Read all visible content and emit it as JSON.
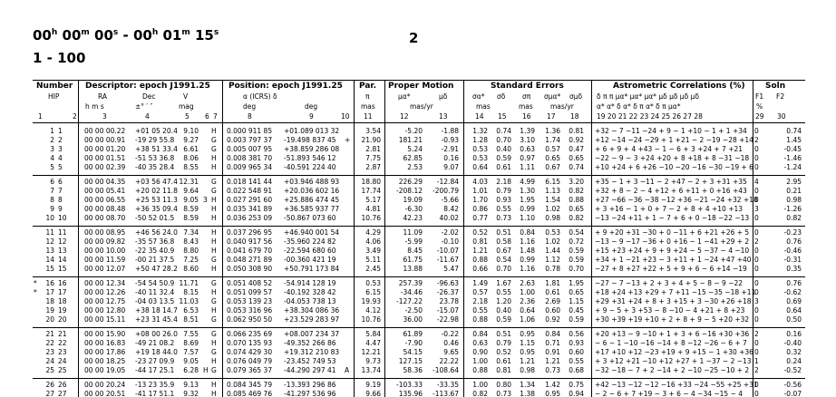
{
  "header": {
    "range": {
      "h1": "00",
      "m1": "00",
      "s1": "00",
      "h2": "00",
      "m2": "01",
      "s2": "15",
      "u_h": "h",
      "u_m": "m",
      "u_s": "s"
    },
    "page_number": "2",
    "subtitle": "1 - 100"
  },
  "columns": {
    "number": {
      "title": "Number",
      "sub": "HIP",
      "n1": "1",
      "n2": "2"
    },
    "descriptor": {
      "title": "Descriptor:  epoch J1991.25",
      "ra": "RA",
      "dec": "Dec",
      "v": "V",
      "ra_units": "h  m  s",
      "dec_units": "±°  ′  ″",
      "v_units": "mag",
      "n3": "3",
      "n4": "4",
      "n5": "5",
      "n6": "6",
      "n7": "7"
    },
    "position": {
      "title": "Position:  epoch J1991.25",
      "icrs": "α       (ICRS)       δ",
      "u1": "deg",
      "u2": "deg",
      "n8": "8",
      "n9": "9",
      "n10": "10"
    },
    "par": {
      "title": "Par.",
      "sym": "π",
      "units": "mas",
      "n": "11"
    },
    "proper_motion": {
      "title": "Proper Motion",
      "mua": "μα*",
      "mud": "μδ",
      "units": "mas/yr",
      "n12": "12",
      "n13": "13"
    },
    "std_errors": {
      "title": "Standard Errors",
      "syms": [
        "σα*",
        "σδ",
        "σπ",
        "σμα*",
        "σμδ"
      ],
      "u1": "mas",
      "u2": "mas",
      "u3": "mas/yr",
      "nums": [
        "14",
        "15",
        "16",
        "17",
        "18"
      ]
    },
    "astrometric": {
      "title": "Astrometric Correlations (%)",
      "row1": "δ   π   π  μα* μα* μα* μδ  μδ  μδ  μδ",
      "row2": "α*  α*  δ   α*  δ   π   α*  δ   π  μα*",
      "nums": "19  20  21  22  23  24  25  26  27  28"
    },
    "soln": {
      "title": "Soln",
      "f1": "F1",
      "f2": "F2",
      "pct": "%",
      "n29": "29",
      "n30": "30"
    }
  },
  "groups": [
    [
      {
        "n": "1",
        "flag": "",
        "hip": "1",
        "ra": "00 00 00.22",
        "dec": "+01 05 20.4",
        "v": "9.10",
        "f6": "",
        "f7": "H",
        "rad": "0.000 911 85",
        "ded": "+01.089 013 32",
        "f10": "",
        "par": "3.54",
        "pma": "-5.20",
        "pmd": "-1.88",
        "e1": "1.32",
        "e2": "0.74",
        "e3": "1.39",
        "e4": "1.36",
        "e5": "0.81",
        "corr": "+32 − 7 −11 −24 + 9 − 1 +10 − 1 + 1 +34",
        "f1": "0",
        "f2": "0.74"
      },
      {
        "n": "2",
        "flag": "",
        "hip": "2",
        "ra": "00 00 00.91",
        "dec": "-19 29 55.8",
        "v": "9.27",
        "f6": "",
        "f7": "G",
        "rad": "0.003 797 37",
        "ded": "-19.498 837 45",
        "f10": "+",
        "par": "21.90",
        "pma": "181.21",
        "pmd": "-0.93",
        "e1": "1.28",
        "e2": "0.70",
        "e3": "3.10",
        "e4": "1.74",
        "e5": "0.92",
        "corr": "+12 −14 −24 −29 + 1 +21 − 2 −19 −28 +14",
        "f1": "2",
        "f2": "1.45"
      },
      {
        "n": "3",
        "flag": "",
        "hip": "3",
        "ra": "00 00 01.20",
        "dec": "+38 51 33.4",
        "v": "6.61",
        "f6": "",
        "f7": "G",
        "rad": "0.005 007 95",
        "ded": "+38.859 286 08",
        "f10": "",
        "par": "2.81",
        "pma": "5.24",
        "pmd": "-2.91",
        "e1": "0.53",
        "e2": "0.40",
        "e3": "0.63",
        "e4": "0.57",
        "e5": "0.47",
        "corr": "+ 6 + 9 + 4 +43 − 1 − 6 + 3 +24 + 7 +21",
        "f1": "0",
        "f2": "-0.45"
      },
      {
        "n": "4",
        "flag": "",
        "hip": "4",
        "ra": "00 00 01.51",
        "dec": "-51 53 36.8",
        "v": "8.06",
        "f6": "",
        "f7": "H",
        "rad": "0.008 381 70",
        "ded": "-51.893 546 12",
        "f10": "",
        "par": "7.75",
        "pma": "62.85",
        "pmd": "0.16",
        "e1": "0.53",
        "e2": "0.59",
        "e3": "0.97",
        "e4": "0.65",
        "e5": "0.65",
        "corr": "−22 − 9 − 3 +24 +20 + 8 +18 + 8 −31 −18",
        "f1": "0",
        "f2": "-1.46"
      },
      {
        "n": "5",
        "flag": "",
        "hip": "5",
        "ra": "00 00 02.39",
        "dec": "-40 35 28.4",
        "v": "8.55",
        "f6": "",
        "f7": "H",
        "rad": "0.009 965 34",
        "ded": "-40.591 224 40",
        "f10": "",
        "par": "2.87",
        "pma": "2.53",
        "pmd": "9.07",
        "e1": "0.64",
        "e2": "0.61",
        "e3": "1.11",
        "e4": "0.67",
        "e5": "0.74",
        "corr": "+10 +24 + 6 +26 −10 −20 −16 −30 −19 + 6",
        "f1": "0",
        "f2": "-1.24"
      }
    ],
    [
      {
        "n": "6",
        "flag": "",
        "hip": "6",
        "ra": "00 00 04.35",
        "dec": "+03 56 47.4",
        "v": "12.31",
        "f6": "",
        "f7": "G",
        "rad": "0.018 141 44",
        "ded": "+03.946 488 93",
        "f10": "",
        "par": "18.80",
        "pma": "226.29",
        "pmd": "-12.84",
        "e1": "4.03",
        "e2": "2.18",
        "e3": "4.99",
        "e4": "6.15",
        "e5": "3.20",
        "corr": "+35 − 1 + 3 −11 − 2 +47 − 2 + 3 +31 +35",
        "f1": "4",
        "f2": "2.95"
      },
      {
        "n": "7",
        "flag": "",
        "hip": "7",
        "ra": "00 00 05.41",
        "dec": "+20 02 11.8",
        "v": "9.64",
        "f6": "",
        "f7": "G",
        "rad": "0.022 548 91",
        "ded": "+20.036 602 16",
        "f10": "",
        "par": "17.74",
        "pma": "-208.12",
        "pmd": "-200.79",
        "e1": "1.01",
        "e2": "0.79",
        "e3": "1.30",
        "e4": "1.13",
        "e5": "0.82",
        "corr": "+32 + 8 − 2 − 4 +12 + 6 +11 + 0 +16 +43",
        "f1": "0",
        "f2": "0.21"
      },
      {
        "n": "8",
        "flag": "",
        "hip": "8",
        "ra": "00 00 06.55",
        "dec": "+25 53 11.3",
        "v": "9.05",
        "f6": "3",
        "f7": "H",
        "rad": "0.027 291 60",
        "ded": "+25.886 474 45",
        "f10": "",
        "par": "5.17",
        "pma": "19.09",
        "pmd": "-5.66",
        "e1": "1.70",
        "e2": "0.93",
        "e3": "1.95",
        "e4": "1.54",
        "e5": "0.88",
        "corr": "+27 −66 −36 −38 −12 +36 −21 −24 +32 +18",
        "f1": "0",
        "f2": "0.98"
      },
      {
        "n": "9",
        "flag": "",
        "hip": "9",
        "ra": "00 00 08.48",
        "dec": "+36 35 09.4",
        "v": "8.59",
        "f6": "",
        "f7": "H",
        "rad": "0.035 341 89",
        "ded": "+36.585 937 77",
        "f10": "",
        "par": "4.81",
        "pma": "-6.30",
        "pmd": "8.42",
        "e1": "0.86",
        "e2": "0.55",
        "e3": "0.99",
        "e4": "1.02",
        "e5": "0.65",
        "corr": "+ 3 +16 − 1 + 0 + 7 − 2 + 8 + 4 +10 +13",
        "f1": "3",
        "f2": "-1.26"
      },
      {
        "n": "10",
        "flag": "",
        "hip": "10",
        "ra": "00 00 08.70",
        "dec": "-50 52 01.5",
        "v": "8.59",
        "f6": "",
        "f7": "H",
        "rad": "0.036 253 09",
        "ded": "-50.867 073 60",
        "f10": "",
        "par": "10.76",
        "pma": "42.23",
        "pmd": "40.02",
        "e1": "0.77",
        "e2": "0.73",
        "e3": "1.10",
        "e4": "0.98",
        "e5": "0.82",
        "corr": "−13 −24 +11 + 1 − 7 + 6 + 0 −18 −22 −13",
        "f1": "0",
        "f2": "0.82"
      }
    ],
    [
      {
        "n": "11",
        "flag": "",
        "hip": "11",
        "ra": "00 00 08.95",
        "dec": "+46 56 24.0",
        "v": "7.34",
        "f6": "",
        "f7": "H",
        "rad": "0.037 296 95",
        "ded": "+46.940 001 54",
        "f10": "",
        "par": "4.29",
        "pma": "11.09",
        "pmd": "-2.02",
        "e1": "0.52",
        "e2": "0.51",
        "e3": "0.84",
        "e4": "0.53",
        "e5": "0.54",
        "corr": "+ 9 +20 +31 −30 + 0 −11 + 6 +21 +26 + 5",
        "f1": "0",
        "f2": "-0.23"
      },
      {
        "n": "12",
        "flag": "",
        "hip": "12",
        "ra": "00 00 09.82",
        "dec": "-35 57 36.8",
        "v": "8.43",
        "f6": "",
        "f7": "H",
        "rad": "0.040 917 56",
        "ded": "-35.960 224 82",
        "f10": "",
        "par": "4.06",
        "pma": "-5.99",
        "pmd": "-0.10",
        "e1": "0.81",
        "e2": "0.58",
        "e3": "1.16",
        "e4": "1.02",
        "e5": "0.72",
        "corr": "−13 − 9 −17 −36 + 0 +16 − 1 −41 +29 + 2",
        "f1": "2",
        "f2": "0.76"
      },
      {
        "n": "13",
        "flag": "",
        "hip": "13",
        "ra": "00 00 10.00",
        "dec": "-22 35 40.9",
        "v": "8.80",
        "f6": "",
        "f7": "H",
        "rad": "0.041 679 70",
        "ded": "-22.594 680 60",
        "f10": "",
        "par": "3.49",
        "pma": "8.45",
        "pmd": "-10.07",
        "e1": "1.21",
        "e2": "0.67",
        "e3": "1.48",
        "e4": "1.44",
        "e5": "0.59",
        "corr": "+15 +23 +24 + 9 + 9 +24 − 5 −37 − 4 −10",
        "f1": "0",
        "f2": "-0.46"
      },
      {
        "n": "14",
        "flag": "",
        "hip": "14",
        "ra": "00 00 11.59",
        "dec": "-00 21 37.5",
        "v": "7.25",
        "f6": "",
        "f7": "G",
        "rad": "0.048 271 89",
        "ded": "-00.360 421 19",
        "f10": "",
        "par": "5.11",
        "pma": "61.75",
        "pmd": "-11.67",
        "e1": "0.88",
        "e2": "0.54",
        "e3": "0.99",
        "e4": "1.12",
        "e5": "0.59",
        "corr": "+34 + 1 −21 +23 − 3 +11 + 1 −24 +47 +40",
        "f1": "0",
        "f2": "-0.31"
      },
      {
        "n": "15",
        "flag": "",
        "hip": "15",
        "ra": "00 00 12.07",
        "dec": "+50 47 28.2",
        "v": "8.60",
        "f6": "",
        "f7": "H",
        "rad": "0.050 308 90",
        "ded": "+50.791 173 84",
        "f10": "",
        "par": "2.45",
        "pma": "13.88",
        "pmd": "5.47",
        "e1": "0.66",
        "e2": "0.70",
        "e3": "1.16",
        "e4": "0.78",
        "e5": "0.70",
        "corr": "−27 + 8 +27 +22 + 5 + 9 + 6 − 6 +14 −19",
        "f1": "0",
        "f2": "0.35"
      }
    ],
    [
      {
        "n": "16",
        "flag": "*",
        "hip": "16",
        "ra": "00 00 12.34",
        "dec": "-54 54 50.9",
        "v": "11.71",
        "f6": "",
        "f7": "G",
        "rad": "0.051 408 52",
        "ded": "-54.914 128 19",
        "f10": "",
        "par": "0.53",
        "pma": "257.39",
        "pmd": "-96.63",
        "e1": "1.49",
        "e2": "1.67",
        "e3": "2.63",
        "e4": "1.81",
        "e5": "1.95",
        "corr": "−27 − 7 −13 + 2 + 3 + 4 + 5 − 8 − 9 −22",
        "f1": "0",
        "f2": "0.76"
      },
      {
        "n": "17",
        "flag": "*",
        "hip": "17",
        "ra": "00 00 12.26",
        "dec": "-40 11 32.4",
        "v": "8.15",
        "f6": "",
        "f7": "H",
        "rad": "0.051 099 57",
        "ded": "-40.192 328 42",
        "f10": "",
        "par": "6.15",
        "pma": "-34.46",
        "pmd": "-26.37",
        "e1": "0.57",
        "e2": "0.55",
        "e3": "1.00",
        "e4": "0.61",
        "e5": "0.65",
        "corr": "+18 +24 +13 +29 + 7 +11 −15 −35 −18 +11",
        "f1": "0",
        "f2": "-0.62"
      },
      {
        "n": "18",
        "flag": "",
        "hip": "18",
        "ra": "00 00 12.75",
        "dec": "-04 03 13.5",
        "v": "11.03",
        "f6": "",
        "f7": "G",
        "rad": "0.053 139 23",
        "ded": "-04.053 738 13",
        "f10": "",
        "par": "19.93",
        "pma": "-127.22",
        "pmd": "23.78",
        "e1": "2.18",
        "e2": "1.20",
        "e3": "2.36",
        "e4": "2.69",
        "e5": "1.15",
        "corr": "+29 +31 +24 + 8 + 3 +15 + 3 −30 +26 +18",
        "f1": "3",
        "f2": "0.69"
      },
      {
        "n": "19",
        "flag": "",
        "hip": "19",
        "ra": "00 00 12.80",
        "dec": "+38 18 14.7",
        "v": "6.53",
        "f6": "",
        "f7": "H",
        "rad": "0.053 316 96",
        "ded": "+38.304 086 36",
        "f10": "",
        "par": "4.12",
        "pma": "-2.50",
        "pmd": "-15.07",
        "e1": "0.55",
        "e2": "0.40",
        "e3": "0.64",
        "e4": "0.60",
        "e5": "0.45",
        "corr": "+ 9 − 5 + 3 +53 − 8 −10 − 4 +21 + 8 +23",
        "f1": "0",
        "f2": "0.64"
      },
      {
        "n": "20",
        "flag": "",
        "hip": "20",
        "ra": "00 00 15.11",
        "dec": "+23 31 45.4",
        "v": "8.51",
        "f6": "",
        "f7": "G",
        "rad": "0.062 950 50",
        "ded": "+23.529 283 97",
        "f10": "",
        "par": "10.76",
        "pma": "36.00",
        "pmd": "-22.98",
        "e1": "0.88",
        "e2": "0.59",
        "e3": "1.06",
        "e4": "0.92",
        "e5": "0.59",
        "corr": "+30 +39 +19 +10 + 2 + 8 + 9 − 5 +20 +32",
        "f1": "0",
        "f2": "0.50"
      }
    ],
    [
      {
        "n": "21",
        "flag": "",
        "hip": "21",
        "ra": "00 00 15.90",
        "dec": "+08 00 26.0",
        "v": "7.55",
        "f6": "",
        "f7": "G",
        "rad": "0.066 235 69",
        "ded": "+08.007 234 37",
        "f10": "",
        "par": "5.84",
        "pma": "61.89",
        "pmd": "-0.22",
        "e1": "0.84",
        "e2": "0.51",
        "e3": "0.95",
        "e4": "0.84",
        "e5": "0.56",
        "corr": "+20 +13 − 9 −10 + 1 + 3 + 6 −16 +30 +36",
        "f1": "2",
        "f2": "0.16"
      },
      {
        "n": "22",
        "flag": "",
        "hip": "22",
        "ra": "00 00 16.83",
        "dec": "-49 21 08.2",
        "v": "8.69",
        "f6": "",
        "f7": "H",
        "rad": "0.070 135 93",
        "ded": "-49.352 266 86",
        "f10": "",
        "par": "4.47",
        "pma": "-7.90",
        "pmd": "0.46",
        "e1": "0.63",
        "e2": "0.79",
        "e3": "1.15",
        "e4": "0.71",
        "e5": "0.93",
        "corr": "− 6 − 1 −10 −16 −14 + 8 −12 −26 − 6 + 7",
        "f1": "0",
        "f2": "-0.40"
      },
      {
        "n": "23",
        "flag": "",
        "hip": "23",
        "ra": "00 00 17.86",
        "dec": "+19 18 44.0",
        "v": "7.57",
        "f6": "",
        "f7": "G",
        "rad": "0.074 429 30",
        "ded": "+19.312 210 83",
        "f10": "",
        "par": "12.21",
        "pma": "54.15",
        "pmd": "9.65",
        "e1": "0.90",
        "e2": "0.52",
        "e3": "0.95",
        "e4": "0.91",
        "e5": "0.60",
        "corr": "+17 +10 +12 −23 +19 + 9 +15 − 1 +30 +36",
        "f1": "0",
        "f2": "0.32"
      },
      {
        "n": "24",
        "flag": "",
        "hip": "24",
        "ra": "00 00 18.25",
        "dec": "-23 27 09.9",
        "v": "9.05",
        "f6": "",
        "f7": "H",
        "rad": "0.076 049 79",
        "ded": "-23.452 749 53",
        "f10": "",
        "par": "9.73",
        "pma": "127.15",
        "pmd": "22.22",
        "e1": "1.00",
        "e2": "0.61",
        "e3": "1.21",
        "e4": "1.21",
        "e5": "0.55",
        "corr": "+ 3 +12 +21 −10 +12 +27 + 1 −37 − 2 −13",
        "f1": "1",
        "f2": "0.24"
      },
      {
        "n": "25",
        "flag": "",
        "hip": "25",
        "ra": "00 00 19.05",
        "dec": "-44 17 25.1",
        "v": "6.28",
        "f6": "H",
        "f7": "G",
        "rad": "0.079 365 37",
        "ded": "-44.290 297 41",
        "f10": "A",
        "par": "13.74",
        "pma": "58.36",
        "pmd": "-108.64",
        "e1": "0.88",
        "e2": "0.81",
        "e3": "0.98",
        "e4": "0.73",
        "e5": "0.68",
        "corr": "−32 −18 − 7 + 2 −14 + 2 −10 −25 −10 + 2",
        "f1": "2",
        "f2": "-0.52"
      }
    ],
    [
      {
        "n": "26",
        "flag": "",
        "hip": "26",
        "ra": "00 00 20.24",
        "dec": "-13 23 35.9",
        "v": "9.13",
        "f6": "",
        "f7": "H",
        "rad": "0.084 345 79",
        "ded": "-13.393 296 86",
        "f10": "",
        "par": "9.19",
        "pma": "-103.33",
        "pmd": "-33.35",
        "e1": "1.00",
        "e2": "0.80",
        "e3": "1.34",
        "e4": "1.42",
        "e5": "0.75",
        "corr": "+42 −13 −12 −12 −16 +33 −24 −55 +25 +31",
        "f1": "0",
        "f2": "-0.56"
      },
      {
        "n": "27",
        "flag": "",
        "hip": "27",
        "ra": "00 00 20.51",
        "dec": "-41 17 51.1",
        "v": "9.32",
        "f6": "",
        "f7": "H",
        "rad": "0.085 469 76",
        "ded": "-41.297 536 96",
        "f10": "",
        "par": "9.66",
        "pma": "135.96",
        "pmd": "-113.67",
        "e1": "0.82",
        "e2": "0.73",
        "e3": "1.38",
        "e4": "0.95",
        "e5": "0.94",
        "corr": "− 2 − 6 + 7 +19 − 3 + 6 − 4 −34 −15 − 4",
        "f1": "0",
        "f2": "-0.07"
      }
    ]
  ]
}
